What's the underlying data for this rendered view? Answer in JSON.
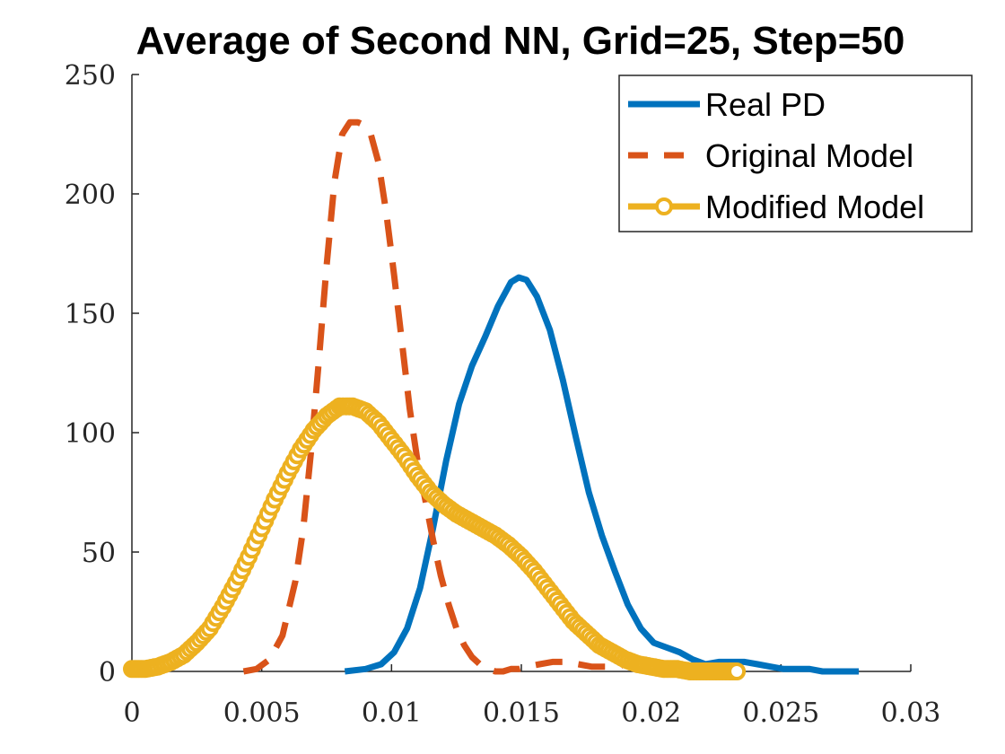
{
  "chart_data": {
    "type": "line",
    "title": "Average of Second NN, Grid=25, Step=50",
    "xlabel": "",
    "ylabel": "",
    "xlim": [
      0,
      0.03
    ],
    "ylim": [
      0,
      250
    ],
    "x_ticks": [
      0,
      0.005,
      0.01,
      0.015,
      0.02,
      0.025,
      0.03
    ],
    "x_tick_labels": [
      "0",
      "0.005",
      "0.01",
      "0.015",
      "0.02",
      "0.025",
      "0.03"
    ],
    "y_ticks": [
      0,
      50,
      100,
      150,
      200,
      250
    ],
    "y_tick_labels": [
      "0",
      "50",
      "100",
      "150",
      "200",
      "250"
    ],
    "grid": false,
    "legend_position": "top-right",
    "series": [
      {
        "name": "Real PD",
        "color": "#0072BD",
        "style": "solid",
        "x": [
          0.0082,
          0.009,
          0.0096,
          0.0101,
          0.0106,
          0.0111,
          0.0116,
          0.0121,
          0.0126,
          0.0131,
          0.0136,
          0.0141,
          0.0146,
          0.0149,
          0.0152,
          0.0156,
          0.0161,
          0.0166,
          0.0171,
          0.0176,
          0.0181,
          0.0186,
          0.0191,
          0.0196,
          0.0201,
          0.0206,
          0.0211,
          0.0216,
          0.0221,
          0.0226,
          0.0231,
          0.0236,
          0.0241,
          0.0246,
          0.0251,
          0.0256,
          0.0261,
          0.0266,
          0.0271,
          0.0276,
          0.028
        ],
        "y": [
          0,
          1,
          3,
          8,
          18,
          35,
          60,
          88,
          112,
          128,
          140,
          153,
          163,
          165,
          164,
          157,
          143,
          122,
          98,
          75,
          57,
          42,
          28,
          18,
          12,
          10,
          8,
          5,
          3,
          4,
          4,
          4,
          3,
          2,
          1,
          1,
          1,
          0,
          0,
          0,
          0
        ]
      },
      {
        "name": "Original Model",
        "color": "#D95319",
        "style": "dashed",
        "x": [
          0.0043,
          0.0048,
          0.0053,
          0.0058,
          0.0063,
          0.0066,
          0.0069,
          0.0072,
          0.0075,
          0.0078,
          0.0081,
          0.0084,
          0.0087,
          0.0089,
          0.0092,
          0.0095,
          0.0098,
          0.0101,
          0.0104,
          0.0107,
          0.011,
          0.0113,
          0.0116,
          0.0119,
          0.0122,
          0.0125,
          0.0128,
          0.0131,
          0.0134,
          0.0137,
          0.014,
          0.0143,
          0.0146,
          0.0149,
          0.0152,
          0.0157,
          0.0162,
          0.0167,
          0.0172,
          0.0177,
          0.0182,
          0.0187,
          0.019,
          0.0195
        ],
        "y": [
          0,
          1,
          5,
          15,
          38,
          60,
          92,
          130,
          170,
          205,
          225,
          230,
          230,
          229,
          225,
          213,
          192,
          166,
          138,
          110,
          88,
          72,
          55,
          40,
          28,
          18,
          11,
          6,
          3,
          1,
          0,
          0,
          1,
          1,
          2,
          3,
          4,
          4,
          3,
          2,
          2,
          2,
          3,
          1
        ]
      },
      {
        "name": "Modified Model",
        "color": "#EDB120",
        "style": "solid-circles",
        "x": [
          0,
          0.0005,
          0.001,
          0.0015,
          0.002,
          0.0025,
          0.003,
          0.0035,
          0.004,
          0.0045,
          0.005,
          0.0055,
          0.006,
          0.0065,
          0.007,
          0.0075,
          0.008,
          0.0085,
          0.009,
          0.0095,
          0.01,
          0.0105,
          0.011,
          0.0115,
          0.012,
          0.0125,
          0.013,
          0.0135,
          0.014,
          0.0145,
          0.015,
          0.0155,
          0.016,
          0.0165,
          0.017,
          0.0175,
          0.018,
          0.0185,
          0.019,
          0.0195,
          0.02,
          0.0205,
          0.021,
          0.0215,
          0.022,
          0.0225,
          0.023,
          0.0233
        ],
        "y": [
          1,
          1,
          2,
          4,
          7,
          12,
          18,
          27,
          37,
          48,
          60,
          72,
          83,
          93,
          101,
          107,
          111,
          111,
          109,
          104,
          97,
          90,
          82,
          75,
          70,
          66,
          63,
          60,
          57,
          53,
          48,
          42,
          35,
          28,
          21,
          16,
          11,
          8,
          5,
          3,
          2,
          1,
          1,
          0,
          0,
          0,
          0,
          0
        ]
      }
    ]
  }
}
